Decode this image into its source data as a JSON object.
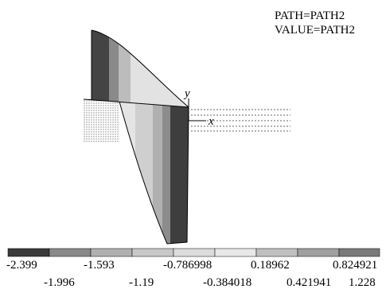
{
  "header": {
    "path": "PATH=PATH2",
    "value": "VALUE=PATH2"
  },
  "axes": {
    "y": "y",
    "x": "x"
  },
  "legend": {
    "top": [
      "-2.399",
      "-1.593",
      "-0.786998",
      "0.18962",
      "0.824921"
    ],
    "bottom": [
      "-1.996",
      "-1.19",
      "-0.384018",
      "0.421941",
      "1.228"
    ]
  }
}
